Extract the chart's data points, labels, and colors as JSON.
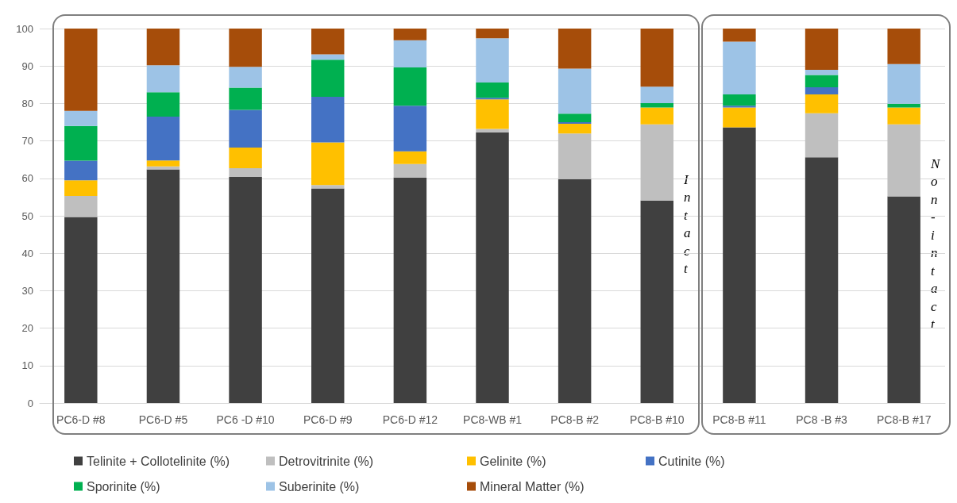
{
  "chart_data": {
    "type": "bar",
    "stacked": true,
    "categories": [
      "PC6-D #8",
      "PC6-D #5",
      "PC6 -D #10",
      "PC6-D #9",
      "PC6-D #12",
      "PC8-WB #1",
      "PC8-B #2",
      "PC8-B #10",
      "PC8-B #11",
      "PC8 -B #3",
      "PC8-B #17"
    ],
    "series": [
      {
        "name": "Telinite + Collotelinite (%)",
        "color": "#404040",
        "values": [
          49.7,
          62.4,
          60.4,
          57.3,
          60.2,
          72.3,
          59.8,
          54.1,
          73.6,
          65.6,
          55.2
        ]
      },
      {
        "name": "Detrovitrinite (%)",
        "color": "#bfbfbf",
        "values": [
          5.6,
          0.8,
          2.3,
          0.9,
          3.6,
          0.9,
          12.2,
          20.3,
          0,
          11.8,
          19.2
        ]
      },
      {
        "name": "Gelinite (%)",
        "color": "#ffc000",
        "values": [
          4.2,
          1.6,
          5.5,
          11.4,
          3.4,
          7.9,
          2.6,
          4.5,
          5.3,
          5.0,
          4.5
        ]
      },
      {
        "name": "Cutinite (%)",
        "color": "#4472c4",
        "values": [
          5.2,
          11.7,
          10.1,
          12.2,
          12.2,
          0.4,
          0.4,
          0,
          0.5,
          1.9,
          0
        ]
      },
      {
        "name": "Sporinite (%)",
        "color": "#00b050",
        "values": [
          9.3,
          6.5,
          5.9,
          9.9,
          10.2,
          4.1,
          2.3,
          1.2,
          3.0,
          3.3,
          1.0
        ]
      },
      {
        "name": "Suberinite (%)",
        "color": "#9dc3e6",
        "values": [
          4.0,
          7.2,
          5.6,
          1.4,
          7.3,
          11.8,
          12.0,
          4.4,
          14.1,
          1.4,
          10.6
        ]
      },
      {
        "name": "Mineral Matter (%)",
        "color": "#a64d0a",
        "values": [
          22.0,
          9.8,
          10.2,
          6.9,
          3.1,
          2.6,
          10.7,
          15.5,
          3.5,
          11.0,
          9.5
        ]
      }
    ],
    "ylim": [
      0,
      100
    ],
    "yticks": [
      0,
      10,
      20,
      30,
      40,
      50,
      60,
      70,
      80,
      90,
      100
    ],
    "grid": "y",
    "legend": "bottom",
    "annotations": [
      "Intact",
      "Non-intact"
    ]
  }
}
